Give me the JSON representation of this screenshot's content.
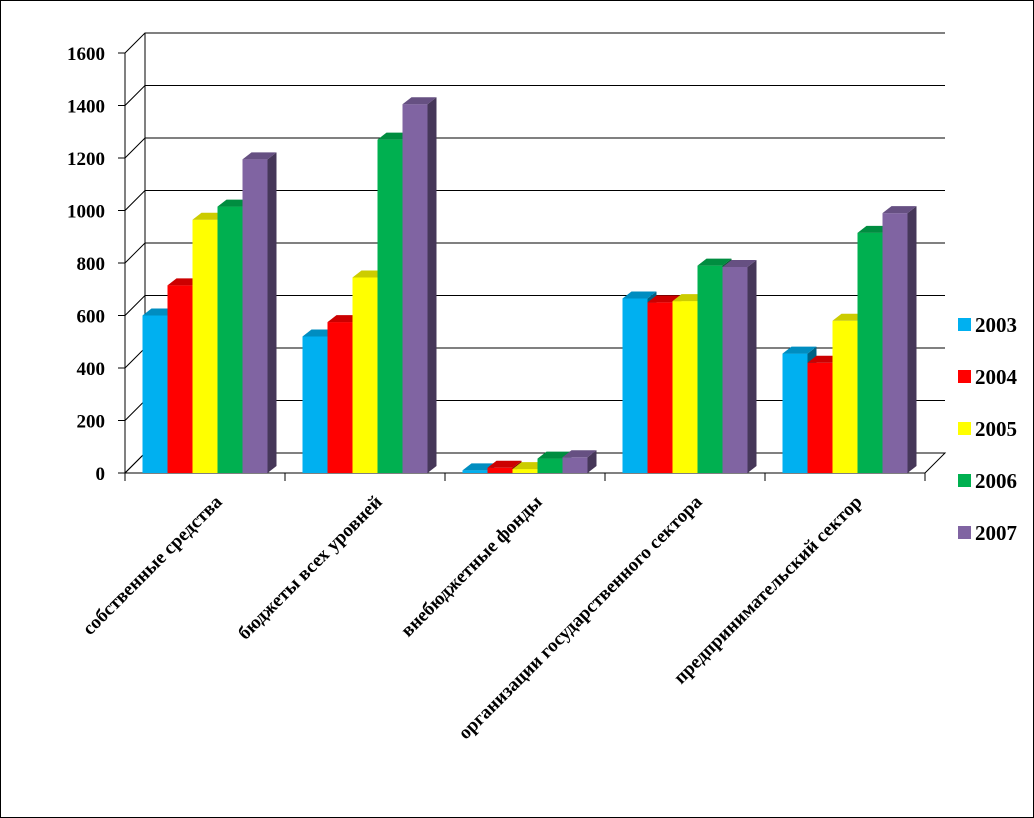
{
  "chart_data": {
    "type": "bar",
    "title": "",
    "xlabel": "",
    "ylabel": "",
    "ylim": [
      0,
      1600
    ],
    "yticks": [
      0,
      200,
      400,
      600,
      800,
      1000,
      1200,
      1400,
      1600
    ],
    "grid": true,
    "legend": "right",
    "categories": [
      "собственные средства",
      "бюджеты всех уровней",
      "внебюджетные фонды",
      "организации государственного сектора",
      "предпринимательский сектор"
    ],
    "series": [
      {
        "name": "2003",
        "color": "#00B0F0",
        "values": [
          600,
          520,
          10,
          665,
          455
        ]
      },
      {
        "name": "2004",
        "color": "#FF0000",
        "values": [
          715,
          575,
          20,
          650,
          420
        ]
      },
      {
        "name": "2005",
        "color": "#FFFF00",
        "values": [
          965,
          745,
          15,
          655,
          580
        ]
      },
      {
        "name": "2006",
        "color": "#00B050",
        "values": [
          1015,
          1270,
          55,
          790,
          915
        ]
      },
      {
        "name": "2007",
        "color": "#8064A2",
        "values": [
          1195,
          1405,
          60,
          785,
          990
        ]
      }
    ]
  }
}
